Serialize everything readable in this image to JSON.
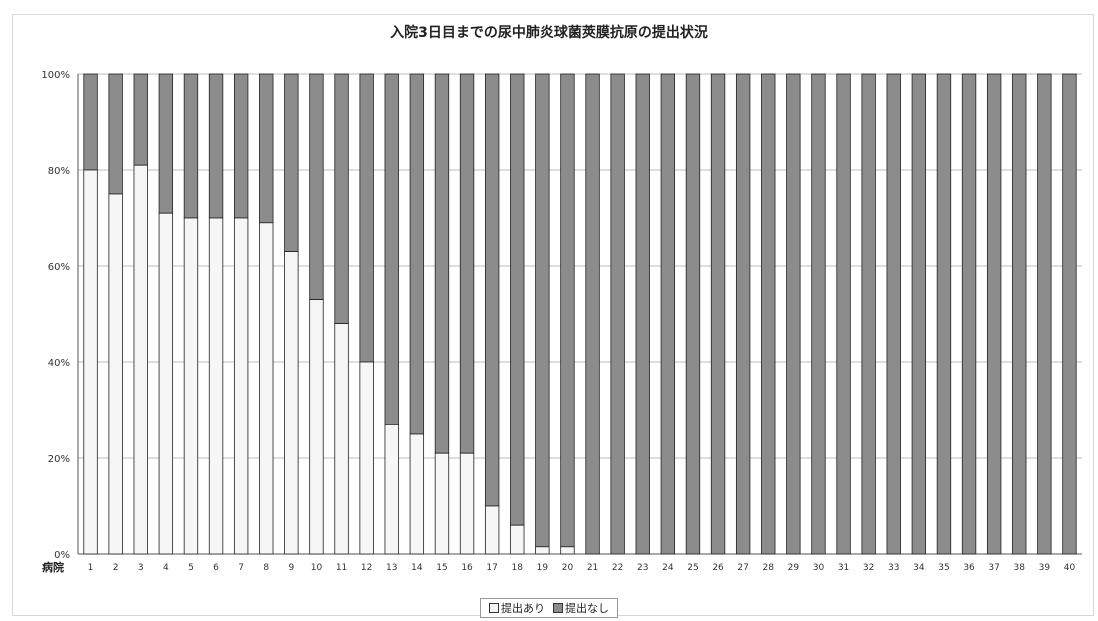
{
  "chart_data": {
    "type": "bar",
    "stacked": "percent",
    "title": "入院3日目までの尿中肺炎球菌莢膜抗原の提出状況",
    "xlabel": "病院",
    "ylabel": "",
    "ylim": [
      0,
      100
    ],
    "yticks": [
      "0%",
      "20%",
      "40%",
      "60%",
      "80%",
      "100%"
    ],
    "grid": true,
    "legend_position": "bottom",
    "categories": [
      "1",
      "2",
      "3",
      "4",
      "5",
      "6",
      "7",
      "8",
      "9",
      "10",
      "11",
      "12",
      "13",
      "14",
      "15",
      "16",
      "17",
      "18",
      "19",
      "20",
      "21",
      "22",
      "23",
      "24",
      "25",
      "26",
      "27",
      "28",
      "29",
      "30",
      "31",
      "32",
      "33",
      "34",
      "35",
      "36",
      "37",
      "38",
      "39",
      "40"
    ],
    "series": [
      {
        "name": "提出あり",
        "color": "#f6f6f6",
        "values": [
          80,
          75,
          81,
          71,
          70,
          70,
          70,
          69,
          63,
          53,
          48,
          40,
          27,
          25,
          21,
          21,
          10,
          6,
          1.5,
          1.5,
          0,
          0,
          0,
          0,
          0,
          0,
          0,
          0,
          0,
          0,
          0,
          0,
          0,
          0,
          0,
          0,
          0,
          0,
          0,
          0
        ]
      },
      {
        "name": "提出なし",
        "color": "#8c8c8c",
        "values": [
          20,
          25,
          19,
          29,
          30,
          30,
          30,
          31,
          37,
          47,
          52,
          60,
          73,
          75,
          79,
          79,
          90,
          94,
          98.5,
          98.5,
          100,
          100,
          100,
          100,
          100,
          100,
          100,
          100,
          100,
          100,
          100,
          100,
          100,
          100,
          100,
          100,
          100,
          100,
          100,
          100
        ]
      }
    ]
  }
}
